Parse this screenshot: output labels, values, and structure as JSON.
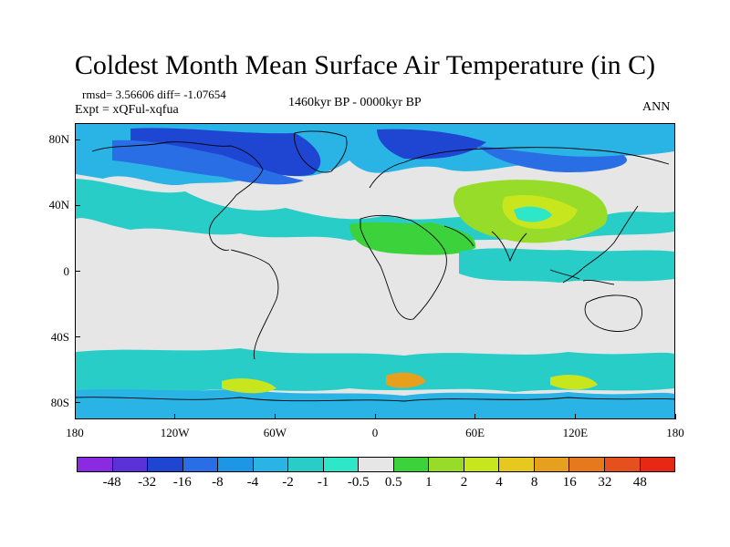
{
  "title": "Coldest Month Mean Surface Air Temperature (in C)",
  "stats_line": "rmsd= 3.56606 diff= -1.07654",
  "experiment_line": "Expt = xQFul-xqfua",
  "period_label": "1460kyr BP - 0000kyr BP",
  "season_label": "ANN",
  "map": {
    "projection": "cylindrical-equidistant",
    "lon_range": [
      -180,
      180
    ],
    "lat_range": [
      -90,
      90
    ],
    "x_ticks": [
      {
        "lon": -180,
        "label": "180"
      },
      {
        "lon": -120,
        "label": "120W"
      },
      {
        "lon": -60,
        "label": "60W"
      },
      {
        "lon": 0,
        "label": "0"
      },
      {
        "lon": 60,
        "label": "60E"
      },
      {
        "lon": 120,
        "label": "120E"
      },
      {
        "lon": 180,
        "label": "180"
      }
    ],
    "y_ticks": [
      {
        "lat": 80,
        "label": "80N"
      },
      {
        "lat": 40,
        "label": "40N"
      },
      {
        "lat": 0,
        "label": "0"
      },
      {
        "lat": -40,
        "label": "40S"
      },
      {
        "lat": -80,
        "label": "80S"
      }
    ],
    "background_color": "#e6e6e6",
    "coastline_color": "#000000"
  },
  "colorbar": {
    "colors": [
      "#8a2be2",
      "#5a32d8",
      "#1e46d2",
      "#2a6ee6",
      "#1e96e6",
      "#2ab4e6",
      "#29cdc8",
      "#2ee6c8",
      "#e6e6e6",
      "#3cd23c",
      "#96dc28",
      "#c8e61e",
      "#e6c81e",
      "#e6a01e",
      "#e6781e",
      "#e6501e",
      "#e62814"
    ],
    "labels": [
      "-48",
      "-32",
      "-16",
      "-8",
      "-4",
      "-2",
      "-1",
      "-0.5",
      "0.5",
      "1",
      "2",
      "4",
      "8",
      "16",
      "32",
      "48"
    ]
  }
}
